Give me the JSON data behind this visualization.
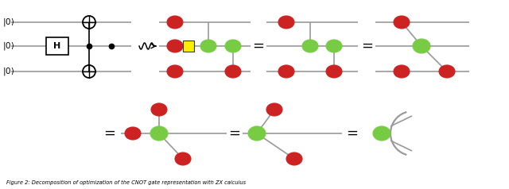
{
  "background_color": "#ffffff",
  "fig_width": 6.4,
  "fig_height": 2.38,
  "dpi": 100,
  "red_color": "#cc2222",
  "green_color": "#77cc44",
  "yellow_color": "#ffee00",
  "line_color": "#999999",
  "caption": "Figure 2: Decomposition of optimization of the CNOT gate representation with ZX calculus"
}
